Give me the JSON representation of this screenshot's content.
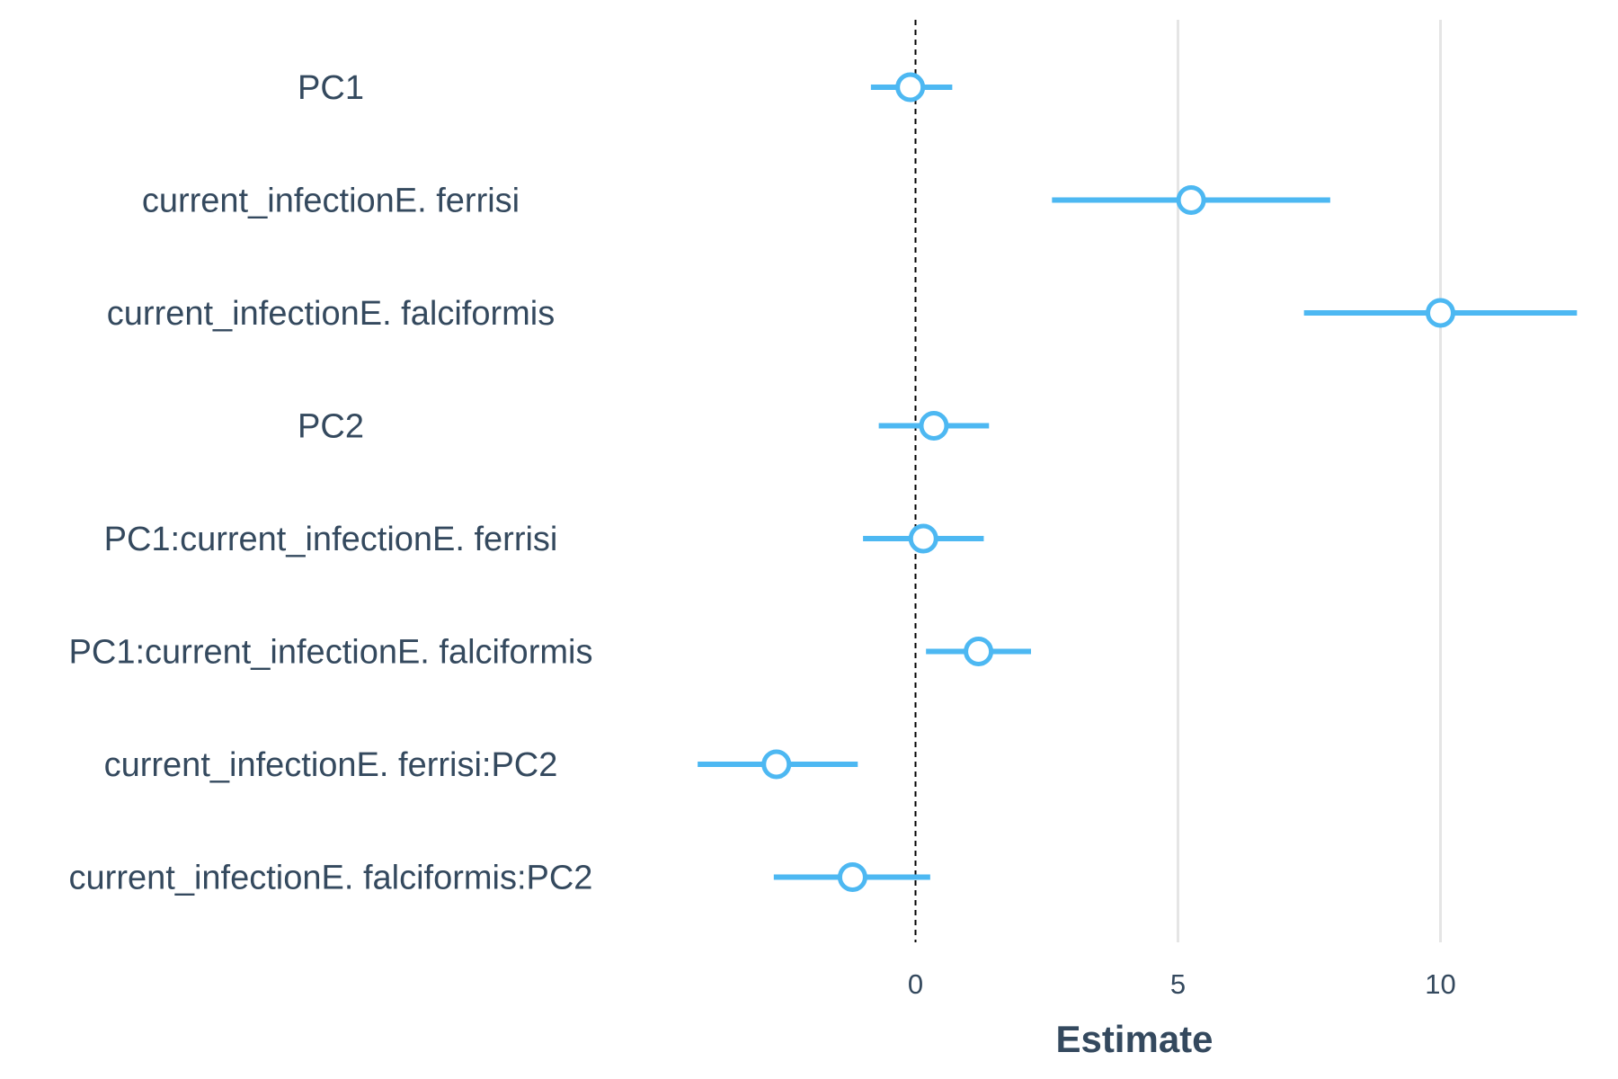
{
  "chart_data": {
    "type": "forest",
    "xlabel": "Estimate",
    "ylabel": "",
    "xlim": [
      -4.2,
      12.6
    ],
    "x_ticks": [
      "0",
      "5",
      "10"
    ],
    "x_tick_values": [
      0,
      5,
      10
    ],
    "reference_line": 0,
    "color": "#4db8f2",
    "terms": [
      {
        "label": "PC1",
        "estimate": -0.1,
        "lower": -0.85,
        "upper": 0.7
      },
      {
        "label": "current_infectionE. ferrisi",
        "estimate": 5.25,
        "lower": 2.6,
        "upper": 7.9
      },
      {
        "label": "current_infectionE. falciformis",
        "estimate": 10.0,
        "lower": 7.4,
        "upper": 12.6
      },
      {
        "label": "PC2",
        "estimate": 0.35,
        "lower": -0.7,
        "upper": 1.4
      },
      {
        "label": "PC1:current_infectionE. ferrisi",
        "estimate": 0.15,
        "lower": -1.0,
        "upper": 1.3
      },
      {
        "label": "PC1:current_infectionE. falciformis",
        "estimate": 1.2,
        "lower": 0.2,
        "upper": 2.2
      },
      {
        "label": "current_infectionE. ferrisi:PC2",
        "estimate": -2.65,
        "lower": -4.15,
        "upper": -1.1
      },
      {
        "label": "current_infectionE. falciformis:PC2",
        "estimate": -1.2,
        "lower": -2.7,
        "upper": 0.28
      }
    ]
  }
}
